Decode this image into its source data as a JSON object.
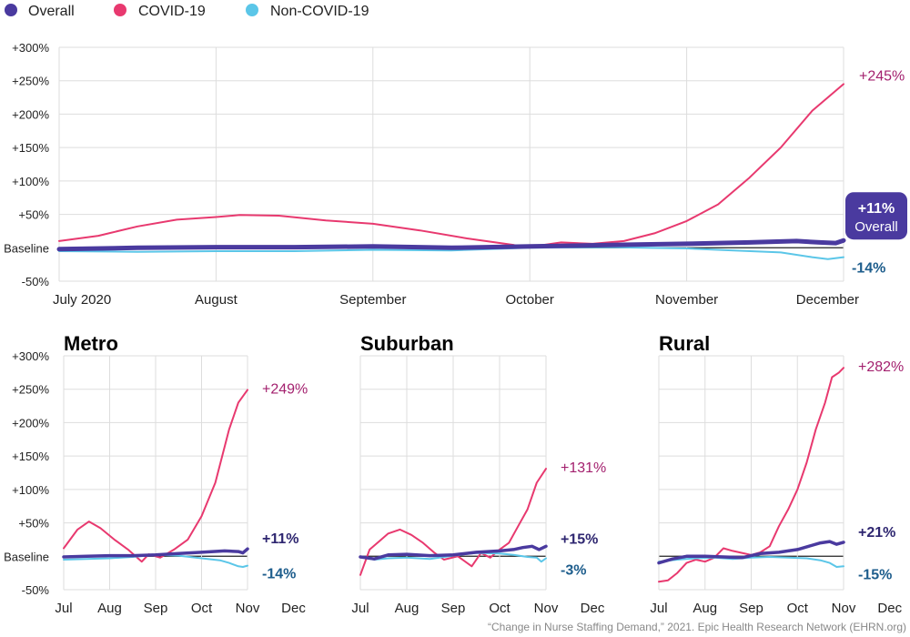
{
  "legend": [
    {
      "label": "Overall",
      "color": "#4A3A9F"
    },
    {
      "label": "COVID-19",
      "color": "#E8396F"
    },
    {
      "label": "Non-COVID-19",
      "color": "#5BC6E8"
    }
  ],
  "source_note": "“Change in Nurse Staffing Demand,” 2021. Epic Health Research Network (EHRN.org)",
  "colors": {
    "overall": "#4A3A9F",
    "covid": "#E8396F",
    "noncovid": "#5BC6E8",
    "covid_label": "#A3206E",
    "overall_label": "#2E2670",
    "noncovid_label": "#1D5D8C",
    "grid": "#DDDDDD",
    "baseline": "#222222"
  },
  "chart_data": [
    {
      "type": "line",
      "title": "",
      "y_ticks": [
        "+300%",
        "+250%",
        "+200%",
        "+150%",
        "+100%",
        "+50%",
        "Baseline",
        "-50%"
      ],
      "ylim": [
        -50,
        300
      ],
      "x_ticks": [
        "July 2020",
        "August",
        "September",
        "October",
        "November",
        "December"
      ],
      "x_tick_pos": [
        0,
        1,
        2,
        3,
        4,
        5
      ],
      "series": [
        {
          "name": "COVID-19",
          "key": "covid",
          "points": [
            [
              0,
              10
            ],
            [
              0.25,
              18
            ],
            [
              0.5,
              32
            ],
            [
              0.75,
              42
            ],
            [
              1.0,
              46
            ],
            [
              1.15,
              49
            ],
            [
              1.4,
              48
            ],
            [
              1.7,
              41
            ],
            [
              2.0,
              36
            ],
            [
              2.3,
              26
            ],
            [
              2.6,
              14
            ],
            [
              2.9,
              4
            ],
            [
              3.0,
              0
            ],
            [
              3.05,
              3
            ],
            [
              3.2,
              8
            ],
            [
              3.4,
              6
            ],
            [
              3.6,
              10
            ],
            [
              3.8,
              22
            ],
            [
              4.0,
              40
            ],
            [
              4.2,
              65
            ],
            [
              4.4,
              105
            ],
            [
              4.6,
              150
            ],
            [
              4.8,
              205
            ],
            [
              5.0,
              245
            ]
          ],
          "end_label": "+245%"
        },
        {
          "name": "Non-COVID-19",
          "key": "noncovid",
          "points": [
            [
              0,
              -5
            ],
            [
              0.5,
              -6
            ],
            [
              1,
              -5
            ],
            [
              1.5,
              -5
            ],
            [
              2,
              -3
            ],
            [
              2.5,
              -4
            ],
            [
              3,
              0
            ],
            [
              3.5,
              1
            ],
            [
              4,
              -1
            ],
            [
              4.3,
              -4
            ],
            [
              4.6,
              -7
            ],
            [
              4.8,
              -14
            ],
            [
              4.9,
              -17
            ],
            [
              5.0,
              -14
            ]
          ],
          "end_label": "-14%"
        },
        {
          "name": "Overall",
          "key": "overall",
          "points": [
            [
              0,
              -2
            ],
            [
              0.5,
              0
            ],
            [
              1,
              1
            ],
            [
              1.5,
              1
            ],
            [
              2,
              2
            ],
            [
              2.5,
              0
            ],
            [
              3,
              2
            ],
            [
              3.5,
              4
            ],
            [
              4,
              6
            ],
            [
              4.4,
              8
            ],
            [
              4.7,
              10
            ],
            [
              4.85,
              8
            ],
            [
              4.95,
              7
            ],
            [
              5.0,
              11
            ]
          ],
          "end_label": "+11%",
          "end_sublabel": "Overall"
        }
      ]
    },
    {
      "type": "line",
      "title": "Metro",
      "y_ticks": [
        "+300%",
        "+250%",
        "+200%",
        "+150%",
        "+100%",
        "+50%",
        "Baseline",
        "-50%"
      ],
      "ylim": [
        -50,
        300
      ],
      "x_ticks": [
        "Jul",
        "Aug",
        "Sep",
        "Oct",
        "Nov",
        "Dec"
      ],
      "series": [
        {
          "name": "COVID-19",
          "key": "covid",
          "points": [
            [
              0,
              12
            ],
            [
              0.3,
              40
            ],
            [
              0.55,
              52
            ],
            [
              0.8,
              42
            ],
            [
              1.1,
              25
            ],
            [
              1.4,
              10
            ],
            [
              1.7,
              -8
            ],
            [
              1.85,
              3
            ],
            [
              2.1,
              -2
            ],
            [
              2.4,
              10
            ],
            [
              2.7,
              25
            ],
            [
              3.0,
              60
            ],
            [
              3.3,
              110
            ],
            [
              3.6,
              190
            ],
            [
              3.8,
              230
            ],
            [
              4.0,
              249
            ]
          ],
          "end_label": "+249%"
        },
        {
          "name": "Non-COVID-19",
          "key": "noncovid",
          "points": [
            [
              0,
              -5
            ],
            [
              0.5,
              -4
            ],
            [
              1,
              -3
            ],
            [
              1.5,
              -1
            ],
            [
              2,
              2
            ],
            [
              2.5,
              1
            ],
            [
              3,
              -3
            ],
            [
              3.4,
              -6
            ],
            [
              3.6,
              -10
            ],
            [
              3.8,
              -15
            ],
            [
              3.9,
              -16
            ],
            [
              4.0,
              -14
            ]
          ],
          "end_label": "-14%"
        },
        {
          "name": "Overall",
          "key": "overall",
          "points": [
            [
              0,
              -1
            ],
            [
              0.5,
              0
            ],
            [
              1,
              1
            ],
            [
              1.5,
              1
            ],
            [
              2,
              2
            ],
            [
              2.5,
              4
            ],
            [
              3,
              6
            ],
            [
              3.5,
              8
            ],
            [
              3.8,
              7
            ],
            [
              3.9,
              5
            ],
            [
              4.0,
              11
            ]
          ],
          "end_label": "+11%"
        }
      ]
    },
    {
      "type": "line",
      "title": "Suburban",
      "y_ticks": [],
      "ylim": [
        -50,
        300
      ],
      "x_ticks": [
        "Jul",
        "Aug",
        "Sep",
        "Oct",
        "Nov",
        "Dec"
      ],
      "series": [
        {
          "name": "COVID-19",
          "key": "covid",
          "points": [
            [
              0,
              -28
            ],
            [
              0.2,
              10
            ],
            [
              0.4,
              22
            ],
            [
              0.6,
              34
            ],
            [
              0.85,
              40
            ],
            [
              1.1,
              32
            ],
            [
              1.35,
              20
            ],
            [
              1.6,
              5
            ],
            [
              1.8,
              -5
            ],
            [
              2.1,
              0
            ],
            [
              2.4,
              -15
            ],
            [
              2.6,
              5
            ],
            [
              2.8,
              -2
            ],
            [
              3.0,
              10
            ],
            [
              3.2,
              20
            ],
            [
              3.4,
              45
            ],
            [
              3.6,
              70
            ],
            [
              3.8,
              110
            ],
            [
              4.0,
              131
            ]
          ],
          "end_label": "+131%"
        },
        {
          "name": "Non-COVID-19",
          "key": "noncovid",
          "points": [
            [
              0,
              -1
            ],
            [
              0.3,
              -5
            ],
            [
              0.6,
              -3
            ],
            [
              1,
              -2
            ],
            [
              1.5,
              -4
            ],
            [
              2,
              1
            ],
            [
              2.5,
              5
            ],
            [
              3,
              4
            ],
            [
              3.3,
              2
            ],
            [
              3.6,
              -1
            ],
            [
              3.8,
              -2
            ],
            [
              3.9,
              -8
            ],
            [
              4.0,
              -3
            ]
          ],
          "end_label": "-3%"
        },
        {
          "name": "Overall",
          "key": "overall",
          "points": [
            [
              0,
              -1
            ],
            [
              0.3,
              -4
            ],
            [
              0.6,
              2
            ],
            [
              1,
              3
            ],
            [
              1.5,
              1
            ],
            [
              2,
              2
            ],
            [
              2.5,
              6
            ],
            [
              3,
              8
            ],
            [
              3.3,
              10
            ],
            [
              3.5,
              13
            ],
            [
              3.7,
              15
            ],
            [
              3.85,
              10
            ],
            [
              4.0,
              15
            ]
          ],
          "end_label": "+15%"
        }
      ]
    },
    {
      "type": "line",
      "title": "Rural",
      "y_ticks": [],
      "ylim": [
        -50,
        300
      ],
      "x_ticks": [
        "Jul",
        "Aug",
        "Sep",
        "Oct",
        "Nov",
        "Dec"
      ],
      "series": [
        {
          "name": "COVID-19",
          "key": "covid",
          "points": [
            [
              0,
              -38
            ],
            [
              0.2,
              -36
            ],
            [
              0.4,
              -25
            ],
            [
              0.6,
              -10
            ],
            [
              0.8,
              -5
            ],
            [
              1.0,
              -8
            ],
            [
              1.2,
              -2
            ],
            [
              1.4,
              12
            ],
            [
              1.6,
              8
            ],
            [
              1.8,
              5
            ],
            [
              2.0,
              2
            ],
            [
              2.2,
              6
            ],
            [
              2.4,
              15
            ],
            [
              2.6,
              45
            ],
            [
              2.8,
              70
            ],
            [
              3.0,
              100
            ],
            [
              3.2,
              140
            ],
            [
              3.4,
              190
            ],
            [
              3.6,
              230
            ],
            [
              3.75,
              268
            ],
            [
              3.9,
              275
            ],
            [
              4.0,
              282
            ]
          ],
          "end_label": "+282%"
        },
        {
          "name": "Non-COVID-19",
          "key": "noncovid",
          "points": [
            [
              0,
              -8
            ],
            [
              0.4,
              -5
            ],
            [
              0.8,
              -3
            ],
            [
              1.2,
              -2
            ],
            [
              1.6,
              -4
            ],
            [
              2.0,
              -2
            ],
            [
              2.4,
              -1
            ],
            [
              2.8,
              -2
            ],
            [
              3.2,
              -3
            ],
            [
              3.5,
              -6
            ],
            [
              3.7,
              -10
            ],
            [
              3.85,
              -16
            ],
            [
              4.0,
              -15
            ]
          ],
          "end_label": "-15%"
        },
        {
          "name": "Overall",
          "key": "overall",
          "points": [
            [
              0,
              -10
            ],
            [
              0.3,
              -4
            ],
            [
              0.6,
              0
            ],
            [
              1.0,
              0
            ],
            [
              1.4,
              -1
            ],
            [
              1.8,
              -2
            ],
            [
              2.2,
              4
            ],
            [
              2.6,
              6
            ],
            [
              3.0,
              10
            ],
            [
              3.3,
              16
            ],
            [
              3.5,
              20
            ],
            [
              3.7,
              22
            ],
            [
              3.85,
              18
            ],
            [
              4.0,
              21
            ]
          ],
          "end_label": "+21%"
        }
      ]
    }
  ]
}
